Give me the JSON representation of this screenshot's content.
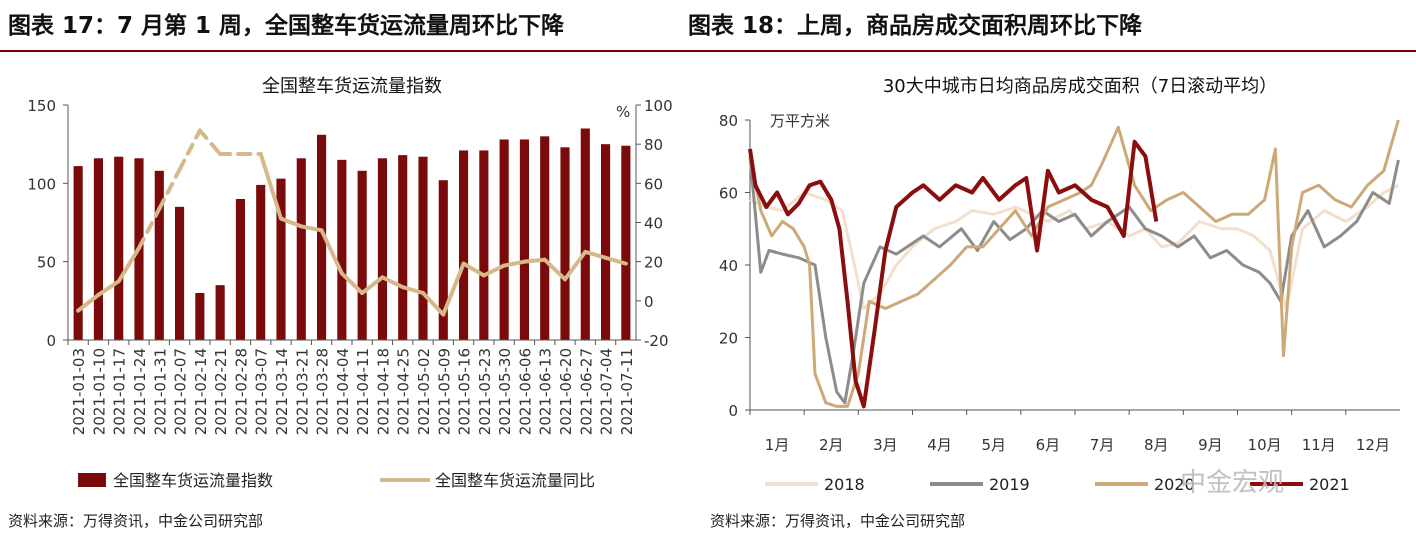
{
  "header": {
    "left_title": "图表 17：7 月第 1 周，全国整车货运流量周环比下降",
    "right_title": "图表 18：上周，商品房成交面积周环比下降"
  },
  "left_chart": {
    "chart_data": {
      "type": "bar",
      "title": "全国整车货运流量指数",
      "categories": [
        "2021-01-03",
        "2021-01-10",
        "2021-01-17",
        "2021-01-24",
        "2021-01-31",
        "2021-02-07",
        "2021-02-14",
        "2021-02-21",
        "2021-02-28",
        "2021-03-07",
        "2021-03-14",
        "2021-03-21",
        "2021-03-28",
        "2021-04-04",
        "2021-04-11",
        "2021-04-18",
        "2021-04-25",
        "2021-05-02",
        "2021-05-09",
        "2021-05-16",
        "2021-05-23",
        "2021-05-30",
        "2021-06-06",
        "2021-06-13",
        "2021-06-20",
        "2021-06-27",
        "2021-07-04",
        "2021-07-11"
      ],
      "series": [
        {
          "name": "全国整车货运流量指数",
          "axis": "left",
          "values": [
            111,
            116,
            117,
            116,
            108,
            85,
            30,
            35,
            90,
            99,
            103,
            116,
            131,
            115,
            108,
            116,
            118,
            117,
            102,
            121,
            121,
            128,
            128,
            130,
            123,
            135,
            125,
            124
          ]
        },
        {
          "name": "全国整车货运流量同比",
          "axis": "right",
          "values": [
            -5,
            3,
            10,
            27,
            47,
            67,
            87,
            75,
            75,
            75,
            42,
            38,
            36,
            14,
            4,
            12,
            7,
            4,
            -7,
            19,
            13,
            18,
            20,
            21,
            11,
            25,
            22,
            19
          ],
          "dashed_ranges": [
            [
              3,
              9
            ]
          ]
        }
      ],
      "ylim_left": [
        0,
        150
      ],
      "yticks_left": [
        "0",
        "50",
        "100",
        "150"
      ],
      "ylim_right": [
        -20,
        100
      ],
      "yticks_right": [
        "-20",
        "0",
        "20",
        "40",
        "60",
        "80",
        "100"
      ],
      "right_unit": "%",
      "colors": {
        "bar": "#7b0b0b",
        "line": "#d6b98a",
        "neg_tick": "#e02020"
      },
      "legend_position": "bottom"
    }
  },
  "right_chart": {
    "chart_data": {
      "type": "line",
      "title": "30大中城市日均商品房成交面积（7日滚动平均）",
      "ylabel": "万平方米",
      "xticks": [
        "1月",
        "2月",
        "3月",
        "4月",
        "5月",
        "6月",
        "7月",
        "8月",
        "9月",
        "10月",
        "11月",
        "12月"
      ],
      "ylim": [
        0,
        80
      ],
      "yticks": [
        "0",
        "20",
        "40",
        "60",
        "80"
      ],
      "series": [
        {
          "name": "2018",
          "color": "#f3e0cc",
          "x": [
            0,
            0.3,
            0.6,
            1.0,
            1.4,
            1.7,
            1.9,
            2.1,
            2.4,
            2.7,
            3.0,
            3.4,
            3.8,
            4.1,
            4.5,
            4.9,
            5.2,
            5.5,
            5.9,
            6.2,
            6.6,
            7.0,
            7.3,
            7.6,
            7.9,
            8.3,
            8.7,
            9.0,
            9.3,
            9.6,
            9.9,
            10.2,
            10.6,
            11.0,
            11.4,
            11.7,
            11.97
          ],
          "y": [
            58,
            56,
            55,
            60,
            58,
            55,
            42,
            28,
            32,
            40,
            45,
            50,
            52,
            55,
            54,
            56,
            54,
            52,
            55,
            50,
            52,
            48,
            50,
            45,
            46,
            52,
            50,
            50,
            48,
            44,
            28,
            50,
            55,
            52,
            56,
            60,
            62
          ]
        },
        {
          "name": "2019",
          "color": "#8c8c8c",
          "x": [
            0,
            0.2,
            0.35,
            0.6,
            0.9,
            1.2,
            1.4,
            1.6,
            1.75,
            1.9,
            2.1,
            2.4,
            2.7,
            3.0,
            3.2,
            3.5,
            3.9,
            4.2,
            4.5,
            4.8,
            5.1,
            5.4,
            5.7,
            6.0,
            6.3,
            6.6,
            7.0,
            7.3,
            7.6,
            7.9,
            8.2,
            8.5,
            8.8,
            9.1,
            9.4,
            9.6,
            9.8,
            10.0,
            10.3,
            10.6,
            10.9,
            11.2,
            11.5,
            11.8,
            11.97
          ],
          "y": [
            70,
            38,
            44,
            43,
            42,
            40,
            20,
            5,
            2,
            15,
            35,
            45,
            43,
            46,
            48,
            45,
            50,
            44,
            52,
            47,
            50,
            55,
            52,
            54,
            48,
            52,
            56,
            50,
            48,
            45,
            48,
            42,
            44,
            40,
            38,
            35,
            30,
            48,
            55,
            45,
            48,
            52,
            60,
            57,
            69
          ]
        },
        {
          "name": "2020",
          "color": "#cda978",
          "x": [
            0,
            0.2,
            0.4,
            0.6,
            0.8,
            1.0,
            1.1,
            1.2,
            1.4,
            1.6,
            1.8,
            2.0,
            2.2,
            2.5,
            2.8,
            3.1,
            3.4,
            3.7,
            4.0,
            4.3,
            4.6,
            4.9,
            5.2,
            5.5,
            5.8,
            6.1,
            6.3,
            6.5,
            6.8,
            7.1,
            7.4,
            7.7,
            8.0,
            8.3,
            8.6,
            8.9,
            9.2,
            9.5,
            9.7,
            9.85,
            10.0,
            10.2,
            10.5,
            10.8,
            11.1,
            11.4,
            11.7,
            11.97
          ],
          "y": [
            70,
            55,
            48,
            52,
            50,
            45,
            40,
            10,
            2,
            1,
            1,
            10,
            30,
            28,
            30,
            32,
            36,
            40,
            45,
            45,
            50,
            55,
            48,
            56,
            58,
            60,
            62,
            68,
            78,
            62,
            55,
            58,
            60,
            56,
            52,
            54,
            54,
            58,
            72,
            15,
            45,
            60,
            62,
            58,
            56,
            62,
            66,
            80
          ]
        },
        {
          "name": "2021",
          "color": "#8b0e0e",
          "x": [
            0,
            0.1,
            0.3,
            0.5,
            0.7,
            0.9,
            1.1,
            1.3,
            1.5,
            1.65,
            1.8,
            1.95,
            2.1,
            2.3,
            2.5,
            2.7,
            3.0,
            3.2,
            3.5,
            3.8,
            4.1,
            4.3,
            4.6,
            4.9,
            5.1,
            5.3,
            5.5,
            5.7,
            6.0,
            6.3,
            6.6,
            6.9,
            7.1,
            7.3,
            7.5
          ],
          "y": [
            72,
            62,
            56,
            60,
            54,
            57,
            62,
            63,
            58,
            50,
            30,
            8,
            1,
            22,
            44,
            56,
            60,
            62,
            58,
            62,
            60,
            64,
            58,
            62,
            64,
            44,
            66,
            60,
            62,
            58,
            56,
            48,
            74,
            70,
            52
          ]
        }
      ],
      "legend_position": "bottom"
    }
  },
  "legend": {
    "left_bar_label": "全国整车货运流量指数",
    "left_line_label": "全国整车货运流量同比",
    "right_2018": "2018",
    "right_2019": "2019",
    "right_2020": "2020",
    "right_2021": "2021"
  },
  "footer": {
    "left_source": "资料来源：万得资讯，中金公司研究部",
    "right_source": "资料来源：万得资讯，中金公司研究部"
  },
  "watermark": "中金宏观"
}
